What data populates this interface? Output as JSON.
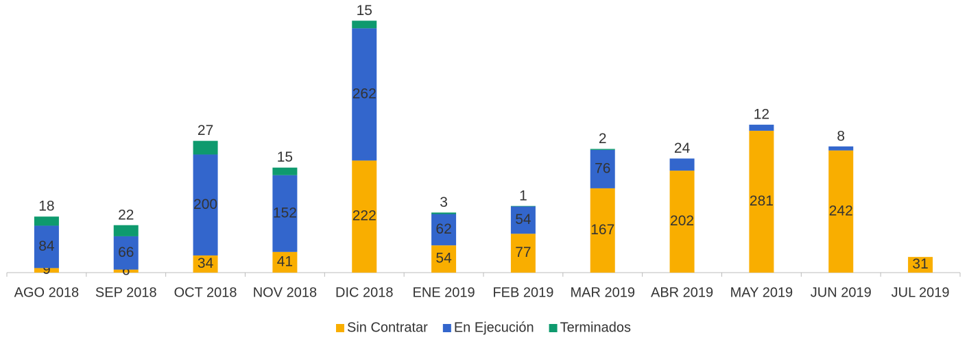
{
  "chart_data": {
    "type": "stacked_bar",
    "categories": [
      "AGO 2018",
      "SEP 2018",
      "OCT 2018",
      "NOV 2018",
      "DIC 2018",
      "ENE 2019",
      "FEB 2019",
      "MAR 2019",
      "ABR 2019",
      "MAY 2019",
      "JUN 2019",
      "JUL 2019"
    ],
    "series": [
      {
        "name": "Sin Contratar",
        "color": "#F9AE00",
        "values": [
          9,
          6,
          34,
          41,
          222,
          54,
          77,
          167,
          202,
          281,
          242,
          31
        ]
      },
      {
        "name": "En Ejecución",
        "color": "#3366CC",
        "values": [
          84,
          66,
          200,
          152,
          262,
          62,
          54,
          76,
          24,
          12,
          8,
          null
        ]
      },
      {
        "name": "Terminados",
        "color": "#0E9A6E",
        "values": [
          18,
          22,
          27,
          15,
          15,
          3,
          1,
          2,
          null,
          null,
          null,
          null
        ]
      }
    ],
    "ylim": [
      0,
      540
    ],
    "legend": "bottom"
  }
}
